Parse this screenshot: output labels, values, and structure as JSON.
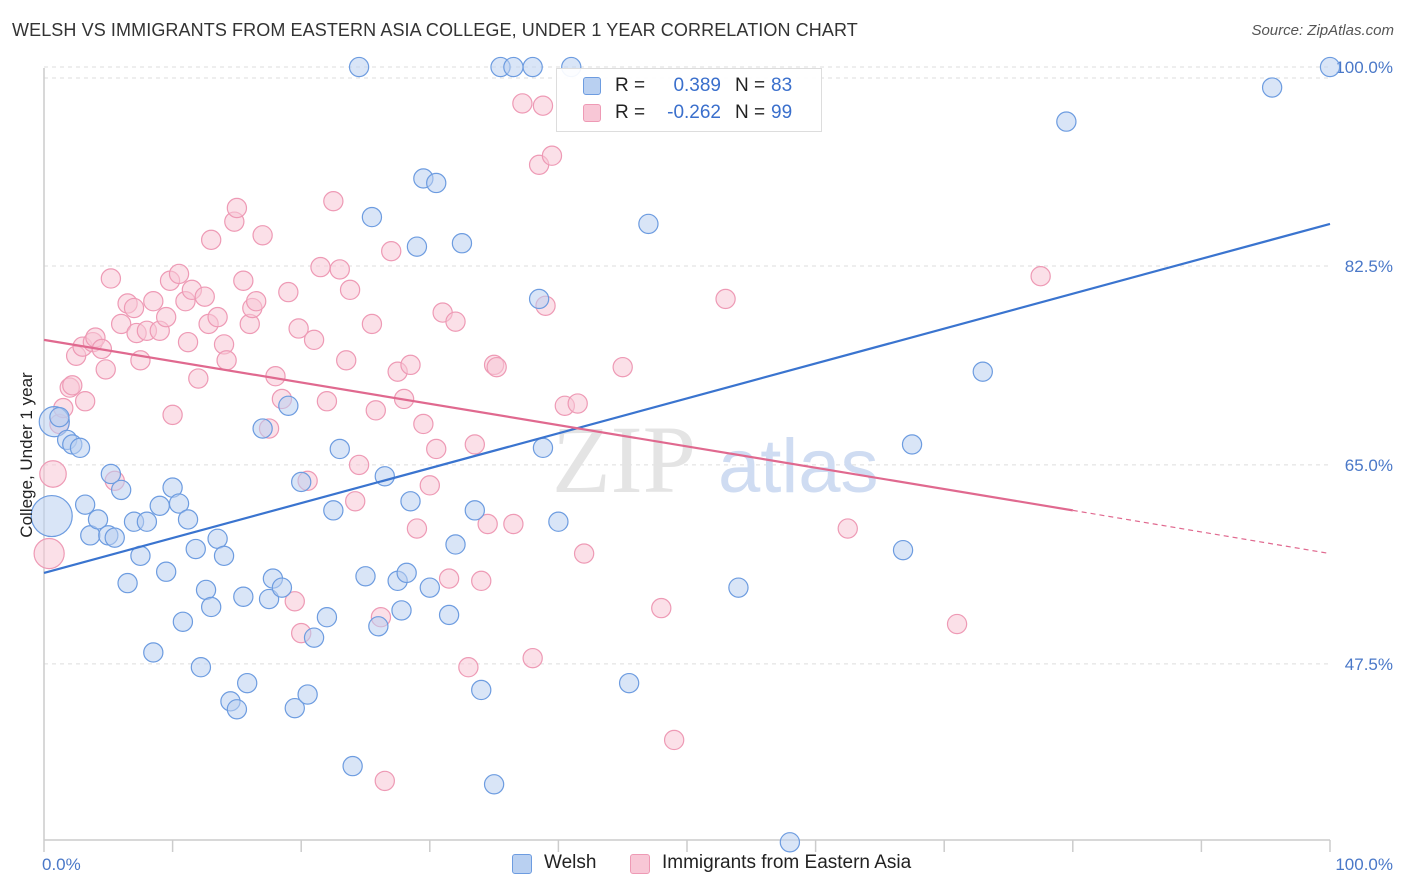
{
  "title": "WELSH VS IMMIGRANTS FROM EASTERN ASIA COLLEGE, UNDER 1 YEAR CORRELATION CHART",
  "source": "Source: ZipAtlas.com",
  "watermark": {
    "zip": "ZIP",
    "atlas": "atlas"
  },
  "colors": {
    "blue": "#3a74cf",
    "blue_fill": "#b9d0f1",
    "blue_stroke": "#6d9ce0",
    "pink": "#e0698f",
    "pink_fill": "#f8c7d6",
    "pink_stroke": "#ee9ab5",
    "grid": "#dddddd",
    "tick_text": "#4a78c8"
  },
  "stats": {
    "rows": [
      {
        "series": "Welsh",
        "r_label": "R =",
        "r_value": "0.389",
        "n_label": "N =",
        "n_value": "83"
      },
      {
        "series": "Immigrants from Eastern Asia",
        "r_label": "R =",
        "r_value": "-0.262",
        "n_label": "N =",
        "n_value": "99"
      }
    ]
  },
  "legend": {
    "items": [
      "Welsh",
      "Immigrants from Eastern Asia"
    ]
  },
  "chart_data": {
    "type": "scatter",
    "title": "WELSH VS IMMIGRANTS FROM EASTERN ASIA COLLEGE, UNDER 1 YEAR CORRELATION CHART",
    "xlabel": "",
    "ylabel": "College, Under 1 year",
    "xlim": [
      0,
      100
    ],
    "ylim": [
      32,
      101.5
    ],
    "x_tick_labels": {
      "0": "0.0%",
      "100": "100.0%"
    },
    "y_ticks": [
      47.5,
      65.0,
      82.5,
      100.0
    ],
    "y_tick_labels": [
      "47.5%",
      "65.0%",
      "82.5%",
      "100.0%"
    ],
    "grid": "horizontal dashed",
    "legend_position": "bottom-center",
    "series": [
      {
        "name": "Welsh",
        "r": 0.389,
        "n": 83,
        "trend": {
          "x": [
            0,
            100
          ],
          "y": [
            55.5,
            86.2
          ]
        },
        "points": [
          [
            0.8,
            68.8,
            16
          ],
          [
            1.2,
            69.2,
            10
          ],
          [
            1.8,
            67.2,
            10
          ],
          [
            2.2,
            66.8,
            10
          ],
          [
            2.8,
            66.5,
            10
          ],
          [
            0.6,
            60.5,
            22
          ],
          [
            3.2,
            61.5,
            10
          ],
          [
            3.6,
            58.8,
            10
          ],
          [
            4.2,
            60.2,
            10
          ],
          [
            5.0,
            58.8,
            10
          ],
          [
            5.5,
            58.6,
            10
          ],
          [
            5.2,
            64.2,
            10
          ],
          [
            6.0,
            62.8,
            10
          ],
          [
            6.5,
            54.6,
            10
          ],
          [
            7.0,
            60.0,
            10
          ],
          [
            7.5,
            57.0,
            10
          ],
          [
            8.0,
            60.0,
            10
          ],
          [
            8.5,
            48.5,
            10
          ],
          [
            9.0,
            61.4,
            10
          ],
          [
            9.5,
            55.6,
            10
          ],
          [
            10.0,
            63.0,
            10
          ],
          [
            10.5,
            61.6,
            10
          ],
          [
            10.8,
            51.2,
            10
          ],
          [
            11.2,
            60.2,
            10
          ],
          [
            11.8,
            57.6,
            10
          ],
          [
            12.2,
            47.2,
            10
          ],
          [
            12.6,
            54.0,
            10
          ],
          [
            13.0,
            52.5,
            10
          ],
          [
            13.5,
            58.5,
            10
          ],
          [
            14.0,
            57.0,
            10
          ],
          [
            14.5,
            44.2,
            10
          ],
          [
            15.0,
            43.5,
            10
          ],
          [
            15.5,
            53.4,
            10
          ],
          [
            15.8,
            45.8,
            10
          ],
          [
            17.0,
            68.2,
            10
          ],
          [
            17.5,
            53.2,
            10
          ],
          [
            17.8,
            55.0,
            10
          ],
          [
            18.5,
            54.2,
            10
          ],
          [
            19.0,
            70.2,
            10
          ],
          [
            19.5,
            43.6,
            10
          ],
          [
            20.0,
            63.5,
            10
          ],
          [
            20.5,
            44.8,
            10
          ],
          [
            21.0,
            49.8,
            10
          ],
          [
            22.0,
            51.6,
            10
          ],
          [
            22.5,
            61.0,
            10
          ],
          [
            23.0,
            66.4,
            10
          ],
          [
            24.0,
            38.5,
            10
          ],
          [
            24.5,
            100.0,
            10
          ],
          [
            25.0,
            55.2,
            10
          ],
          [
            25.5,
            86.8,
            10
          ],
          [
            26.0,
            50.8,
            10
          ],
          [
            26.5,
            64.0,
            10
          ],
          [
            27.5,
            54.8,
            10
          ],
          [
            27.8,
            52.2,
            10
          ],
          [
            28.2,
            55.5,
            10
          ],
          [
            28.5,
            61.8,
            10
          ],
          [
            29.0,
            84.2,
            10
          ],
          [
            29.5,
            90.2,
            10
          ],
          [
            30.0,
            54.2,
            10
          ],
          [
            30.5,
            89.8,
            10
          ],
          [
            31.5,
            51.8,
            10
          ],
          [
            32.0,
            58.0,
            10
          ],
          [
            32.5,
            84.5,
            10
          ],
          [
            33.5,
            61.0,
            10
          ],
          [
            34.0,
            45.2,
            10
          ],
          [
            35.0,
            36.9,
            10
          ],
          [
            35.5,
            100.0,
            10
          ],
          [
            36.5,
            100.0,
            10
          ],
          [
            38.0,
            100.0,
            10
          ],
          [
            38.5,
            79.6,
            10
          ],
          [
            38.8,
            66.5,
            10
          ],
          [
            40.0,
            60.0,
            10
          ],
          [
            41.0,
            100.0,
            10
          ],
          [
            45.5,
            45.8,
            10
          ],
          [
            47.0,
            86.2,
            10
          ],
          [
            54.0,
            54.2,
            10
          ],
          [
            58.0,
            31.8,
            10
          ],
          [
            66.8,
            57.5,
            10
          ],
          [
            67.5,
            66.8,
            10
          ],
          [
            73.0,
            73.2,
            10
          ],
          [
            79.5,
            95.2,
            10
          ],
          [
            95.5,
            98.2,
            10
          ],
          [
            100.0,
            100.0,
            10
          ]
        ]
      },
      {
        "name": "Immigrants from Eastern Asia",
        "r": -0.262,
        "n": 99,
        "trend": {
          "x": [
            0,
            80
          ],
          "y": [
            76.0,
            61.0
          ]
        },
        "trend_dashed": {
          "x": [
            80,
            100
          ],
          "y": [
            61.0,
            57.2
          ]
        },
        "points": [
          [
            0.4,
            57.2,
            16
          ],
          [
            0.7,
            64.2,
            14
          ],
          [
            1.2,
            68.6,
            10
          ],
          [
            1.5,
            70.0,
            10
          ],
          [
            2.0,
            71.8,
            10
          ],
          [
            2.2,
            72.0,
            10
          ],
          [
            2.5,
            74.6,
            10
          ],
          [
            3.0,
            75.4,
            10
          ],
          [
            3.2,
            70.6,
            10
          ],
          [
            3.8,
            75.8,
            10
          ],
          [
            4.0,
            76.2,
            10
          ],
          [
            4.5,
            75.2,
            10
          ],
          [
            4.8,
            73.4,
            10
          ],
          [
            5.2,
            81.4,
            10
          ],
          [
            5.5,
            63.6,
            10
          ],
          [
            6.0,
            77.4,
            10
          ],
          [
            6.5,
            79.2,
            10
          ],
          [
            7.0,
            78.8,
            10
          ],
          [
            7.2,
            76.6,
            10
          ],
          [
            7.5,
            74.2,
            10
          ],
          [
            8.0,
            76.8,
            10
          ],
          [
            8.5,
            79.4,
            10
          ],
          [
            9.0,
            76.8,
            10
          ],
          [
            9.5,
            78.0,
            10
          ],
          [
            9.8,
            81.2,
            10
          ],
          [
            10.0,
            69.4,
            10
          ],
          [
            10.5,
            81.8,
            10
          ],
          [
            11.0,
            79.4,
            10
          ],
          [
            11.2,
            75.8,
            10
          ],
          [
            11.5,
            80.4,
            10
          ],
          [
            12.0,
            72.6,
            10
          ],
          [
            12.5,
            79.8,
            10
          ],
          [
            12.8,
            77.4,
            10
          ],
          [
            13.0,
            84.8,
            10
          ],
          [
            13.5,
            78.0,
            10
          ],
          [
            14.0,
            75.6,
            10
          ],
          [
            14.2,
            74.2,
            10
          ],
          [
            14.8,
            86.4,
            10
          ],
          [
            15.0,
            87.6,
            10
          ],
          [
            15.5,
            81.2,
            10
          ],
          [
            16.0,
            77.4,
            10
          ],
          [
            16.2,
            78.8,
            10
          ],
          [
            16.5,
            79.4,
            10
          ],
          [
            17.0,
            85.2,
            10
          ],
          [
            17.5,
            68.2,
            10
          ],
          [
            18.0,
            72.8,
            10
          ],
          [
            18.5,
            70.8,
            10
          ],
          [
            19.0,
            80.2,
            10
          ],
          [
            19.5,
            53.0,
            10
          ],
          [
            19.8,
            77.0,
            10
          ],
          [
            20.0,
            50.2,
            10
          ],
          [
            20.5,
            63.6,
            10
          ],
          [
            21.0,
            76.0,
            10
          ],
          [
            21.5,
            82.4,
            10
          ],
          [
            22.0,
            70.6,
            10
          ],
          [
            22.5,
            88.2,
            10
          ],
          [
            23.0,
            82.2,
            10
          ],
          [
            23.5,
            74.2,
            10
          ],
          [
            23.8,
            80.4,
            10
          ],
          [
            24.2,
            61.8,
            10
          ],
          [
            24.5,
            65.0,
            10
          ],
          [
            25.5,
            77.4,
            10
          ],
          [
            25.8,
            69.8,
            10
          ],
          [
            26.2,
            51.6,
            10
          ],
          [
            26.5,
            37.2,
            10
          ],
          [
            27.0,
            83.8,
            10
          ],
          [
            27.5,
            73.2,
            10
          ],
          [
            28.0,
            70.8,
            10
          ],
          [
            28.5,
            73.8,
            10
          ],
          [
            29.0,
            59.4,
            10
          ],
          [
            29.5,
            68.6,
            10
          ],
          [
            30.0,
            63.2,
            10
          ],
          [
            30.5,
            66.4,
            10
          ],
          [
            31.0,
            78.4,
            10
          ],
          [
            31.5,
            55.0,
            10
          ],
          [
            32.0,
            77.6,
            10
          ],
          [
            33.0,
            47.2,
            10
          ],
          [
            33.5,
            66.8,
            10
          ],
          [
            34.0,
            54.8,
            10
          ],
          [
            34.5,
            59.8,
            10
          ],
          [
            35.0,
            73.8,
            10
          ],
          [
            35.2,
            73.6,
            10
          ],
          [
            36.5,
            59.8,
            10
          ],
          [
            37.2,
            96.8,
            10
          ],
          [
            38.0,
            48.0,
            10
          ],
          [
            38.5,
            91.4,
            10
          ],
          [
            39.0,
            79.0,
            10
          ],
          [
            39.5,
            92.2,
            10
          ],
          [
            40.5,
            70.2,
            10
          ],
          [
            41.5,
            70.4,
            10
          ],
          [
            42.0,
            57.2,
            10
          ],
          [
            45.0,
            73.6,
            10
          ],
          [
            48.0,
            52.4,
            10
          ],
          [
            49.0,
            40.8,
            10
          ],
          [
            53.0,
            79.6,
            10
          ],
          [
            62.5,
            59.4,
            10
          ],
          [
            71.0,
            51.0,
            10
          ],
          [
            77.5,
            81.6,
            10
          ],
          [
            38.8,
            96.6,
            10
          ]
        ]
      }
    ]
  }
}
